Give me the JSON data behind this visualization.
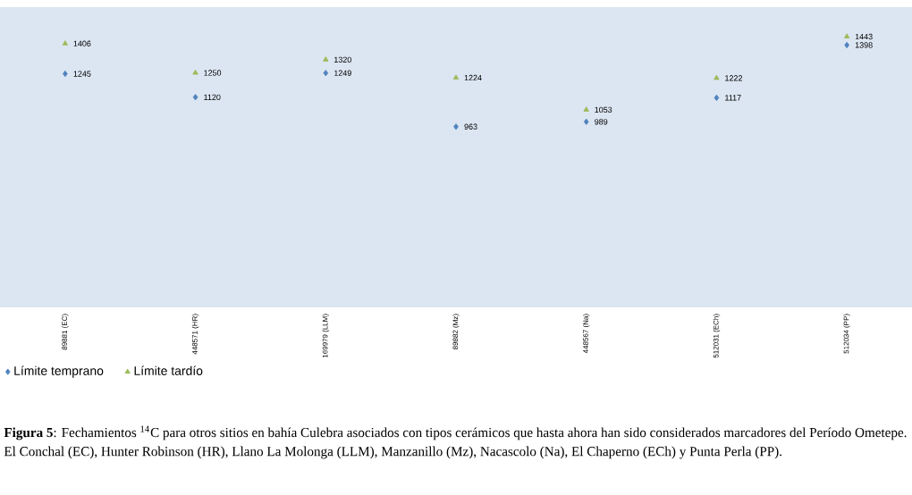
{
  "chart_data": {
    "type": "scatter",
    "categories": [
      "89881 (EC)",
      "448571 (HR)",
      "169979 (LLM)",
      "89882 (Mz)",
      "448567 (Na)",
      "512031 (ECh)",
      "512034 (PP)"
    ],
    "series": [
      {
        "name": "Límite temprano",
        "color": "#4f81bd",
        "marker": "diamond",
        "values": [
          1245,
          1120,
          1249,
          963,
          989,
          1117,
          1398
        ]
      },
      {
        "name": "Límite tardío",
        "color": "#9bbb59",
        "marker": "triangle",
        "values": [
          1406,
          1250,
          1320,
          1224,
          1053,
          1222,
          1443
        ]
      }
    ],
    "ylim": [
      0,
      1600
    ],
    "data_labels": true,
    "tick_labels": "x",
    "grid": false,
    "legend": "bottom left",
    "annotations": [
      "**Figura 5**: Fechamientos $^{14}$C para otros sitios en bahía Culebra asociados con tipos cerámicos que hasta ahora han sido considerados marcadores del Período Ometepe. El Conchal (EC), Hunter Robinson (HR), Llano La Molonga (LLM), Manzanillo (Mz), Nacascolo (Na), El Chaperno (ECh) y Punta Perla (PP)."
    ]
  }
}
